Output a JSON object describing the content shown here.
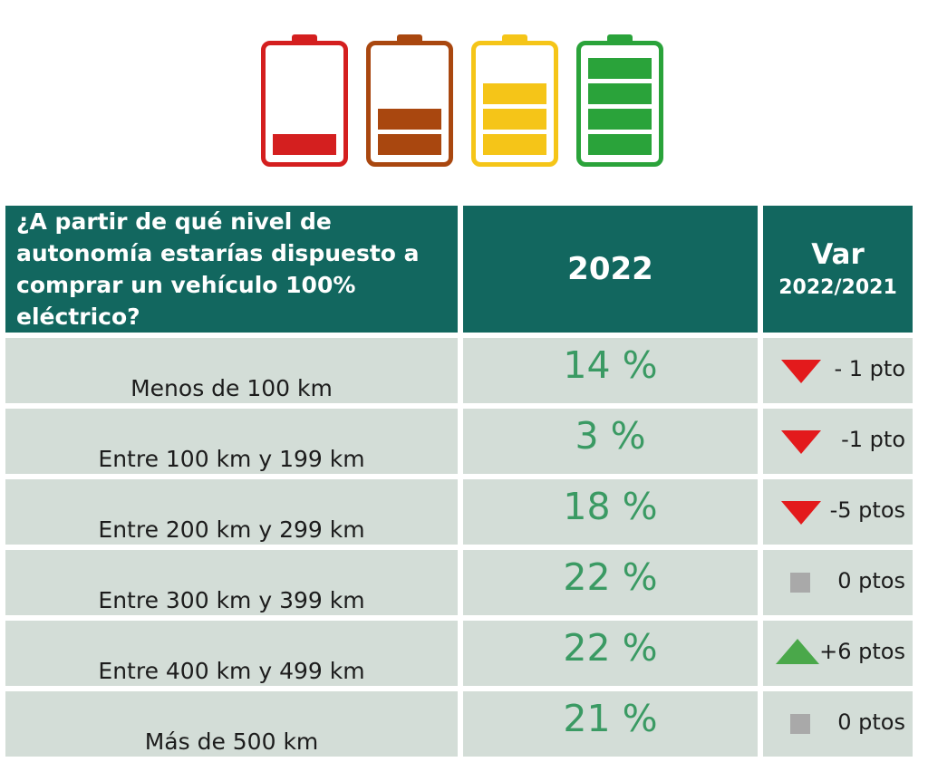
{
  "batteries": [
    {
      "color": "#d41f1f",
      "level": 1,
      "capacity": 4
    },
    {
      "color": "#a9470f",
      "level": 2,
      "capacity": 4
    },
    {
      "color": "#f5c518",
      "level": 3,
      "capacity": 4
    },
    {
      "color": "#2aa33a",
      "level": 4,
      "capacity": 4
    }
  ],
  "table": {
    "header": {
      "question": "¿A partir de qué nivel de autonomía estarías dispuesto a comprar un vehículo 100% eléctrico?",
      "year": "2022",
      "var_title": "Var",
      "var_sub": "2022/2021"
    },
    "rows": [
      {
        "label": "Menos de 100 km",
        "percent": "14 %",
        "variation": "- 1 pto",
        "trend": "down"
      },
      {
        "label": "Entre 100 km y 199 km",
        "percent": "3 %",
        "variation": "-1 pto",
        "trend": "down"
      },
      {
        "label": "Entre 200 km y 299 km",
        "percent": "18 %",
        "variation": "-5 ptos",
        "trend": "down"
      },
      {
        "label": "Entre 300 km y 399 km",
        "percent": "22 %",
        "variation": "0 ptos",
        "trend": "flat"
      },
      {
        "label": "Entre 400 km y 499 km",
        "percent": "22 %",
        "variation": "+6 ptos",
        "trend": "up"
      },
      {
        "label": "Más de 500 km",
        "percent": "21 %",
        "variation": "0 ptos",
        "trend": "flat"
      }
    ]
  },
  "chart_data": {
    "type": "table",
    "title": "¿A partir de qué nivel de autonomía estarías dispuesto a comprar un vehículo 100% eléctrico?",
    "columns": [
      "2022",
      "Var 2022/2021"
    ],
    "categories": [
      "Menos de 100 km",
      "Entre 100 km y 199 km",
      "Entre 200 km y 299 km",
      "Entre 300 km y 399 km",
      "Entre 400 km y 499 km",
      "Más de 500 km"
    ],
    "series": [
      {
        "name": "2022",
        "values": [
          14,
          3,
          18,
          22,
          22,
          21
        ]
      },
      {
        "name": "Var 2022/2021",
        "values": [
          -1,
          -1,
          -5,
          0,
          6,
          0
        ]
      }
    ]
  }
}
